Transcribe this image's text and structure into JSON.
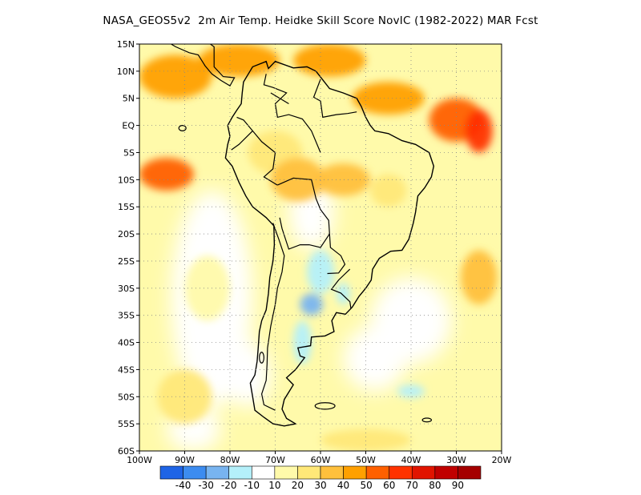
{
  "title": "NASA_GEOS5v2  2m Air Temp. Heidke Skill Score NovIC (1982-2022) MAR Fcst",
  "map": {
    "lon_range": [
      -100,
      -20
    ],
    "lat_range": [
      -60,
      15
    ],
    "lat_ticks": [
      "15N",
      "10N",
      "5N",
      "EQ",
      "5S",
      "10S",
      "15S",
      "20S",
      "25S",
      "30S",
      "35S",
      "40S",
      "45S",
      "50S",
      "55S",
      "60S"
    ],
    "lon_ticks": [
      "100W",
      "90W",
      "80W",
      "70W",
      "60W",
      "50W",
      "40W",
      "30W",
      "20W"
    ],
    "grid": "dotted"
  },
  "colorbar": {
    "colors": [
      "#1e64e6",
      "#3c8cf0",
      "#78b4f0",
      "#b4f0fa",
      "#ffffff",
      "#fffaaa",
      "#ffe878",
      "#ffc03c",
      "#ffa000",
      "#ff6000",
      "#ff3200",
      "#e11400",
      "#c00000",
      "#a50000"
    ],
    "labels": [
      "-40",
      "-30",
      "-20",
      "-10",
      "10",
      "20",
      "30",
      "40",
      "50",
      "60",
      "70",
      "80",
      "90"
    ]
  },
  "chart_data": {
    "type": "heatmap",
    "title": "NASA_GEOS5v2  2m Air Temp. Heidke Skill Score NovIC (1982-2022) MAR Fcst",
    "x_range": [
      -100,
      -20
    ],
    "y_range": [
      -60,
      15
    ],
    "levels": [
      -40,
      -30,
      -20,
      -10,
      10,
      20,
      30,
      40,
      50,
      60,
      70,
      80,
      90
    ],
    "regions": [
      {
        "lon": -92,
        "lat": 9,
        "value": 45
      },
      {
        "lon": -94,
        "lat": -9,
        "value": 50
      },
      {
        "lon": -78,
        "lat": 12,
        "value": 45
      },
      {
        "lon": -58,
        "lat": 12,
        "value": 40
      },
      {
        "lon": -30,
        "lat": 1,
        "value": 55
      },
      {
        "lon": -25,
        "lat": -1,
        "value": 60
      },
      {
        "lon": -45,
        "lat": 5,
        "value": 40
      },
      {
        "lon": -70,
        "lat": -5,
        "value": 25
      },
      {
        "lon": -65,
        "lat": -10,
        "value": 35
      },
      {
        "lon": -55,
        "lat": -10,
        "value": 30
      },
      {
        "lon": -45,
        "lat": -12,
        "value": 20
      },
      {
        "lon": -60,
        "lat": -27,
        "value": -20
      },
      {
        "lon": -62,
        "lat": -33,
        "value": -30
      },
      {
        "lon": -64,
        "lat": -40,
        "value": -15
      },
      {
        "lon": -55,
        "lat": -31,
        "value": -20
      },
      {
        "lon": -40,
        "lat": -49,
        "value": -15
      },
      {
        "lon": -25,
        "lat": -28,
        "value": 30
      },
      {
        "lon": -85,
        "lat": -30,
        "value": 10
      },
      {
        "lon": -90,
        "lat": -50,
        "value": 20
      },
      {
        "lon": -50,
        "lat": -58,
        "value": 20
      }
    ]
  }
}
